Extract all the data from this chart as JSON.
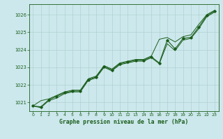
{
  "title": "Graphe pression niveau de la mer (hPa)",
  "background_color": "#cce8ec",
  "grid_color": "#aacccc",
  "line_color": "#1a5c1a",
  "marker_color": "#1a5c1a",
  "xlim": [
    -0.5,
    23.5
  ],
  "ylim": [
    1020.5,
    1026.6
  ],
  "yticks": [
    1021,
    1022,
    1023,
    1024,
    1025,
    1026
  ],
  "xticks": [
    0,
    1,
    2,
    3,
    4,
    5,
    6,
    7,
    8,
    9,
    10,
    11,
    12,
    13,
    14,
    15,
    16,
    17,
    18,
    19,
    20,
    21,
    22,
    23
  ],
  "main": [
    1020.8,
    1020.75,
    1021.15,
    1021.35,
    1021.55,
    1021.65,
    1021.65,
    1022.3,
    1022.45,
    1023.05,
    1022.85,
    1023.2,
    1023.3,
    1023.4,
    1023.4,
    1023.6,
    1023.25,
    1024.55,
    1024.05,
    1024.65,
    1024.7,
    1025.3,
    1025.95,
    1026.2
  ],
  "upper": [
    1020.8,
    1021.1,
    1021.2,
    1021.4,
    1021.6,
    1021.7,
    1021.7,
    1022.35,
    1022.5,
    1023.1,
    1022.9,
    1023.25,
    1023.35,
    1023.45,
    1023.45,
    1023.65,
    1024.6,
    1024.7,
    1024.45,
    1024.75,
    1024.85,
    1025.45,
    1026.0,
    1026.25
  ],
  "lower": [
    1020.8,
    1020.7,
    1021.1,
    1021.25,
    1021.5,
    1021.6,
    1021.6,
    1022.25,
    1022.4,
    1023.0,
    1022.8,
    1023.15,
    1023.25,
    1023.35,
    1023.35,
    1023.55,
    1023.2,
    1024.35,
    1023.95,
    1024.55,
    1024.65,
    1025.2,
    1025.88,
    1026.15
  ]
}
